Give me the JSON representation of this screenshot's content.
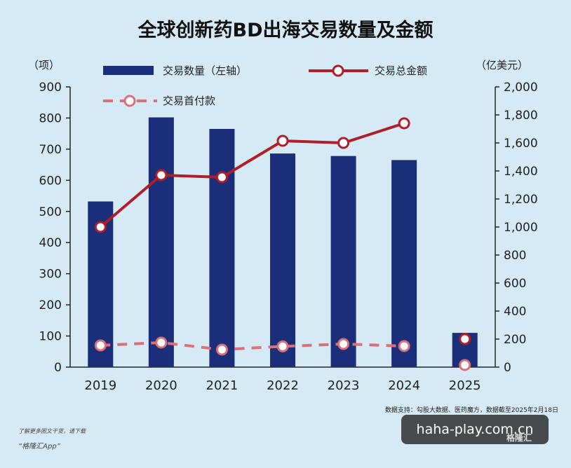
{
  "chart_data": {
    "type": "bar+line",
    "title": "全球创新药BD出海交易数量及金额",
    "categories": [
      "2019",
      "2020",
      "2021",
      "2022",
      "2023",
      "2024",
      "2025"
    ],
    "left_axis": {
      "unit": "（项）",
      "min": 0,
      "max": 900,
      "ticks": [
        "0",
        "100",
        "200",
        "300",
        "400",
        "500",
        "600",
        "700",
        "800",
        "900"
      ]
    },
    "right_axis": {
      "unit": "（亿美元）",
      "min": 0,
      "max": 2000,
      "ticks": [
        "0",
        "200",
        "400",
        "600",
        "800",
        "1,000",
        "1,200",
        "1,400",
        "1,600",
        "1,800",
        "2,000"
      ]
    },
    "series": [
      {
        "name": "交易数量（左轴）",
        "type": "bar",
        "axis": "left",
        "color": "#1b2e7a",
        "values": [
          532,
          802,
          765,
          686,
          678,
          665,
          110
        ]
      },
      {
        "name": "交易总金额",
        "type": "line",
        "axis": "right",
        "color": "#b01e2a",
        "values": [
          1000,
          1370,
          1355,
          1615,
          1600,
          1740,
          200
        ]
      },
      {
        "name": "交易首付款",
        "type": "dashed-line",
        "axis": "right",
        "color": "#d9707a",
        "values": [
          155,
          175,
          125,
          148,
          165,
          150,
          15
        ]
      }
    ],
    "grid": false,
    "legend": "top"
  },
  "source": "数据支持：勾股大数据、医药魔方，数据截至2025年2月18日",
  "footer": {
    "note": "了解更多图文干货，请下载",
    "app": "“格隆汇App”"
  },
  "watermark": "haha-play.com.cn",
  "brand": "格隆汇",
  "colors": {
    "background": "#d6eaf6",
    "bar": "#1b2e7a",
    "total_line": "#b01e2a",
    "upfront_line": "#d9707a"
  }
}
